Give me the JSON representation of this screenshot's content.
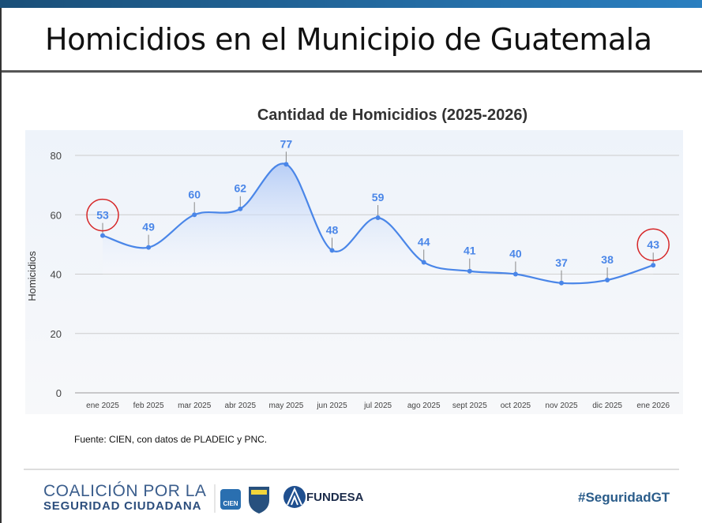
{
  "header": {
    "title": "Homicidios en el Municipio de Guatemala"
  },
  "chart_data": {
    "type": "line",
    "title": "Cantidad de Homicidios (2025-2026)",
    "xlabel": "",
    "ylabel": "Homicidios",
    "categories": [
      "ene 2025",
      "feb 2025",
      "mar 2025",
      "abr 2025",
      "may 2025",
      "jun 2025",
      "jul 2025",
      "ago 2025",
      "sept 2025",
      "oct 2025",
      "nov 2025",
      "dic 2025",
      "ene 2026"
    ],
    "values": [
      53,
      49,
      60,
      62,
      77,
      48,
      59,
      44,
      41,
      40,
      37,
      38,
      43
    ],
    "ylim": [
      0,
      80
    ],
    "yticks": [
      0,
      20,
      40,
      60,
      80
    ],
    "grid": true,
    "smooth": true,
    "area_fill": true,
    "highlighted_points": [
      "ene 2025",
      "ene 2026"
    ],
    "colors": {
      "line": "#4a86e8",
      "highlight": "#d62728"
    }
  },
  "source": "Fuente: CIEN, con datos de PLADEIC y PNC.",
  "footer": {
    "coalicion_line1": "COALICIÓN POR LA",
    "coalicion_line2": "SEGURIDAD CIUDADANA",
    "cien_logo": "CIEN",
    "crime_stoppers_logo": "CRIME STOPPERS",
    "fundesa": "FUNDESA",
    "hashtag": "#SeguridadGT"
  }
}
